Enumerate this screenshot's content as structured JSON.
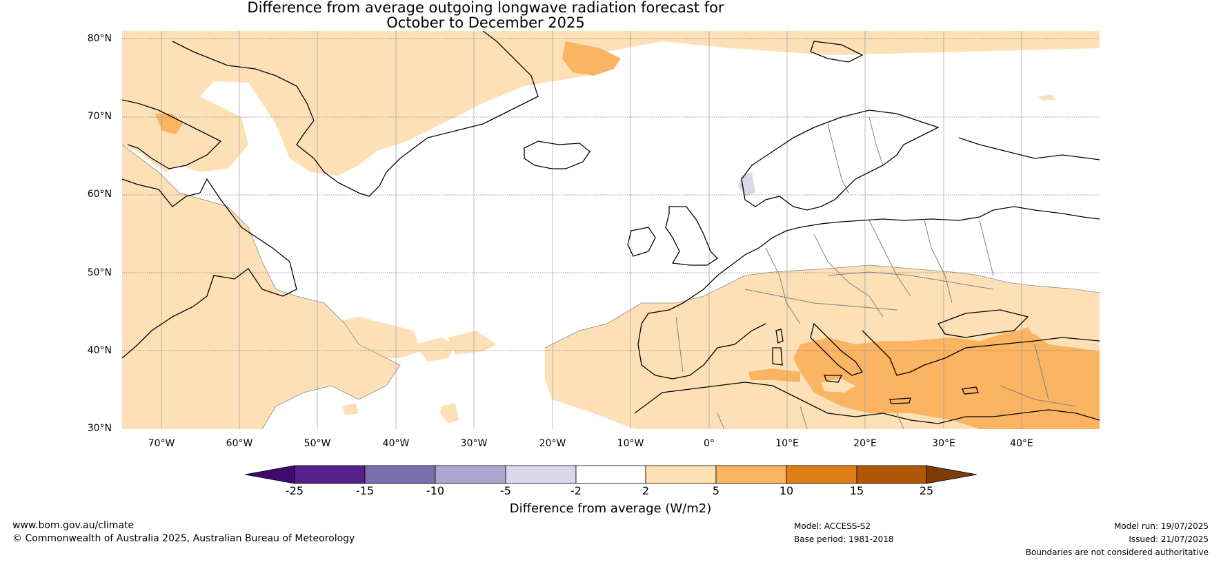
{
  "title_line1": "Difference from average outgoing longwave radiation forecast for",
  "title_line2": "October to December 2025",
  "lat_labels": [
    "80°N",
    "70°N",
    "60°N",
    "50°N",
    "40°N",
    "30°N"
  ],
  "lon_labels": [
    "70°W",
    "60°W",
    "50°W",
    "40°W",
    "30°W",
    "20°W",
    "10°W",
    "0°",
    "10°E",
    "20°E",
    "30°E",
    "40°E"
  ],
  "colorbar": {
    "ticks": [
      "-25",
      "-15",
      "-10",
      "-5",
      "-2",
      "2",
      "5",
      "10",
      "15",
      "25"
    ],
    "colors": [
      "#3f0a6b",
      "#56208a",
      "#7b6ead",
      "#ada5cf",
      "#d9d7ea",
      "#ffffff",
      "#fde0b6",
      "#fbb461",
      "#df7e14",
      "#b05707",
      "#7f3b08"
    ],
    "label": "Difference from average (W/m2)"
  },
  "footer": {
    "website": "www.bom.gov.au/climate",
    "copyright": "© Commonwealth of Australia 2025, Australian Bureau of Meteorology",
    "model": "Model: ACCESS-S2",
    "base_period": "Base period: 1981-2018",
    "model_run": "Model run: 19/07/2025",
    "issued": "Issued: 21/07/2025",
    "disclaimer": "Boundaries are not considered authoritative"
  }
}
